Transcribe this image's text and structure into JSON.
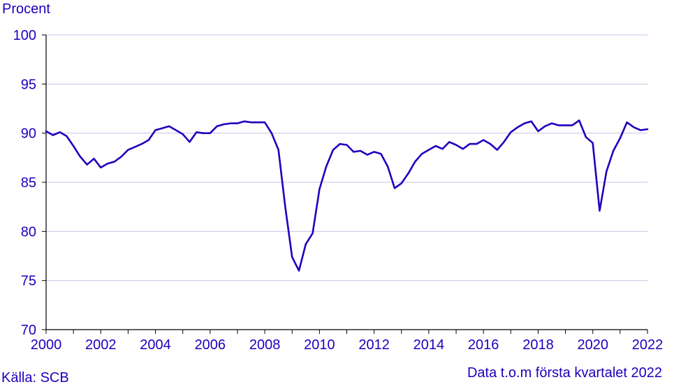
{
  "colors": {
    "text": "#1E00BE",
    "line": "#1E00BE",
    "grid": "#C5C2E8",
    "axis": "#000000"
  },
  "footer": {
    "source": "Källa: SCB",
    "note": "Data t.o.m första kvartalet 2022"
  },
  "chart_data": {
    "type": "line",
    "title": "",
    "xlabel": "",
    "ylabel": "Procent",
    "xlim": [
      2000,
      2022
    ],
    "ylim": [
      70,
      100
    ],
    "grid": "horizontal",
    "x_ticks": [
      "2000",
      "2002",
      "2004",
      "2006",
      "2008",
      "2010",
      "2012",
      "2014",
      "2016",
      "2018",
      "2020",
      "2022"
    ],
    "y_ticks": [
      "70",
      "75",
      "80",
      "85",
      "90",
      "95",
      "100"
    ],
    "series": [
      {
        "color": "#1E00BE",
        "frequency": "quarterly",
        "x": [
          "2000 Q1",
          "2000 Q2",
          "2000 Q3",
          "2000 Q4",
          "2001 Q1",
          "2001 Q2",
          "2001 Q3",
          "2001 Q4",
          "2002 Q1",
          "2002 Q2",
          "2002 Q3",
          "2002 Q4",
          "2003 Q1",
          "2003 Q2",
          "2003 Q3",
          "2003 Q4",
          "2004 Q1",
          "2004 Q2",
          "2004 Q3",
          "2004 Q4",
          "2005 Q1",
          "2005 Q2",
          "2005 Q3",
          "2005 Q4",
          "2006 Q1",
          "2006 Q2",
          "2006 Q3",
          "2006 Q4",
          "2007 Q1",
          "2007 Q2",
          "2007 Q3",
          "2007 Q4",
          "2008 Q1",
          "2008 Q2",
          "2008 Q3",
          "2008 Q4",
          "2009 Q1",
          "2009 Q2",
          "2009 Q3",
          "2009 Q4",
          "2010 Q1",
          "2010 Q2",
          "2010 Q3",
          "2010 Q4",
          "2011 Q1",
          "2011 Q2",
          "2011 Q3",
          "2011 Q4",
          "2012 Q1",
          "2012 Q2",
          "2012 Q3",
          "2012 Q4",
          "2013 Q1",
          "2013 Q2",
          "2013 Q3",
          "2013 Q4",
          "2014 Q1",
          "2014 Q2",
          "2014 Q3",
          "2014 Q4",
          "2015 Q1",
          "2015 Q2",
          "2015 Q3",
          "2015 Q4",
          "2016 Q1",
          "2016 Q2",
          "2016 Q3",
          "2016 Q4",
          "2017 Q1",
          "2017 Q2",
          "2017 Q3",
          "2017 Q4",
          "2018 Q1",
          "2018 Q2",
          "2018 Q3",
          "2018 Q4",
          "2019 Q1",
          "2019 Q2",
          "2019 Q3",
          "2019 Q4",
          "2020 Q1",
          "2020 Q2",
          "2020 Q3",
          "2020 Q4",
          "2021 Q1",
          "2021 Q2",
          "2021 Q3",
          "2021 Q4",
          "2022 Q1"
        ],
        "values": [
          90.2,
          89.8,
          90.1,
          89.7,
          88.7,
          87.6,
          86.8,
          87.4,
          86.5,
          86.9,
          87.1,
          87.6,
          88.3,
          88.6,
          88.9,
          89.3,
          90.3,
          90.5,
          90.7,
          90.3,
          89.9,
          89.1,
          90.1,
          90.0,
          90.0,
          90.7,
          90.9,
          91.0,
          91.0,
          91.2,
          91.1,
          91.1,
          91.1,
          90.0,
          88.3,
          82.5,
          77.4,
          76.0,
          78.7,
          79.8,
          84.3,
          86.6,
          88.3,
          88.9,
          88.8,
          88.1,
          88.2,
          87.8,
          88.1,
          87.9,
          86.6,
          84.4,
          84.9,
          85.9,
          87.1,
          87.9,
          88.3,
          88.7,
          88.4,
          89.1,
          88.8,
          88.4,
          88.9,
          88.9,
          89.3,
          88.9,
          88.3,
          89.1,
          90.1,
          90.6,
          91.0,
          91.2,
          90.2,
          90.7,
          91.0,
          90.8,
          90.8,
          90.8,
          91.3,
          89.6,
          89.0,
          82.1,
          86.1,
          88.2,
          89.5,
          91.1,
          90.6,
          90.3,
          90.4
        ]
      }
    ]
  }
}
